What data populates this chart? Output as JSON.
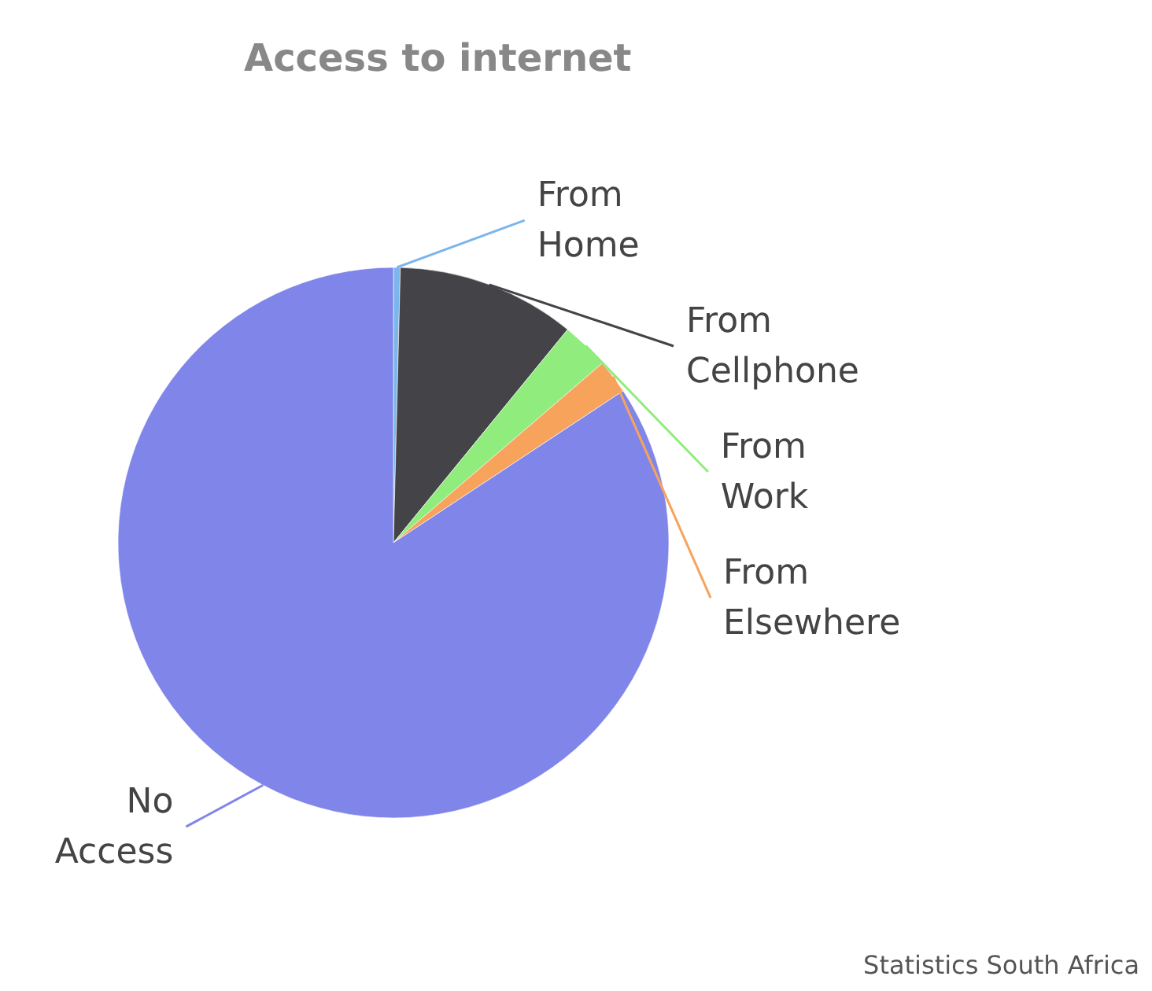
{
  "chart_data": {
    "type": "pie",
    "title": "Access to internet",
    "categories": [
      "From Home",
      "From Cellphone",
      "From Work",
      "From Elsewhere",
      "No Access"
    ],
    "values": [
      0.4,
      10.5,
      2.8,
      2.0,
      84.3
    ],
    "colors": [
      "#7cb5ec",
      "#434348",
      "#90ed7d",
      "#f7a35c",
      "#8085e9"
    ],
    "annotations": [
      "Statistics South Africa"
    ]
  }
}
